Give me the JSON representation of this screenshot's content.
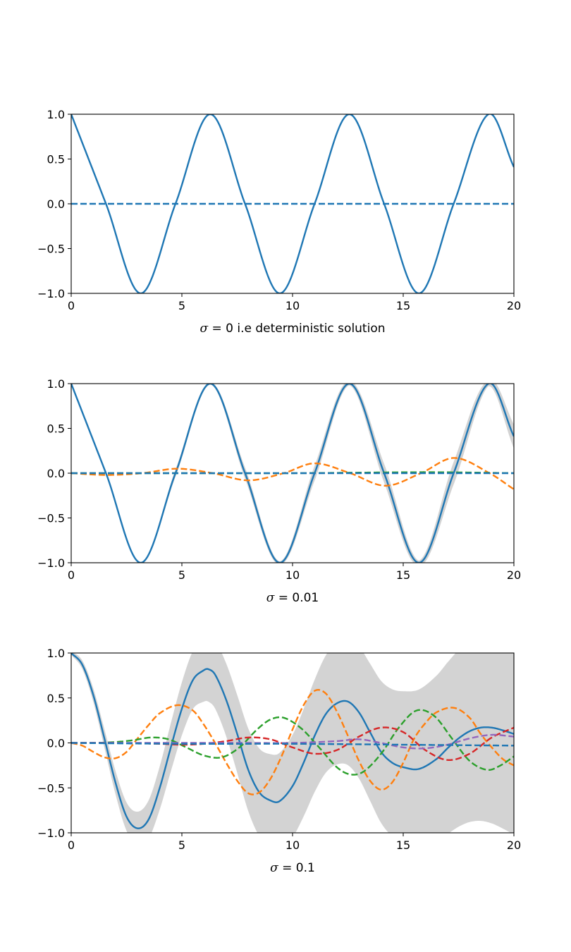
{
  "chart_data": [
    {
      "type": "line",
      "xlabel_symbol": "σ",
      "xlabel_text": " = 0 i.e deterministic solution",
      "xlim": [
        0,
        20
      ],
      "ylim": [
        -1.0,
        1.0
      ],
      "xticks": [
        "0",
        "5",
        "10",
        "15",
        "20"
      ],
      "yticks": [
        "1.0",
        "0.5",
        "0.0",
        "−0.5",
        "−1.0"
      ],
      "grid": false,
      "band": null,
      "series": [
        {
          "style": "solid",
          "color": "#1f77b4",
          "x": [
            0,
            1.571,
            3.142,
            4.712,
            6.283,
            7.854,
            9.425,
            10.996,
            12.566,
            14.137,
            15.708,
            17.279,
            18.85,
            20
          ],
          "y": [
            1.0,
            0.0,
            -1.0,
            0.0,
            1.0,
            0.0,
            -1.0,
            0.0,
            1.0,
            0.0,
            -1.0,
            0.0,
            1.0,
            0.41
          ]
        },
        {
          "style": "dashed",
          "color": "#1f77b4",
          "x": [
            0,
            20
          ],
          "y": [
            0.0,
            0.0
          ]
        }
      ]
    },
    {
      "type": "line",
      "xlabel_symbol": "σ",
      "xlabel_text": " = 0.01",
      "xlim": [
        0,
        20
      ],
      "ylim": [
        -1.0,
        1.0
      ],
      "xticks": [
        "0",
        "5",
        "10",
        "15",
        "20"
      ],
      "yticks": [
        "1.0",
        "0.5",
        "0.0",
        "−0.5",
        "−1.0"
      ],
      "grid": false,
      "band": {
        "color": "#d3d3d3",
        "note": "± spread around mean, widening with x"
      },
      "series": [
        {
          "style": "solid",
          "color": "#1f77b4",
          "x": [
            0,
            1.571,
            3.142,
            4.712,
            6.283,
            7.854,
            9.425,
            10.996,
            12.566,
            14.137,
            15.708,
            17.279,
            18.85,
            20
          ],
          "y": [
            1.0,
            0.0,
            -1.0,
            0.0,
            1.0,
            0.0,
            -1.0,
            0.0,
            1.0,
            0.0,
            -1.0,
            0.0,
            1.0,
            0.41
          ]
        },
        {
          "style": "dashed",
          "color": "#ff7f0e",
          "x": [
            0,
            1.6,
            3.2,
            4.8,
            6.4,
            8.0,
            9.6,
            11.0,
            12.6,
            14.2,
            15.8,
            17.3,
            18.9,
            20
          ],
          "y": [
            0.0,
            -0.02,
            0.0,
            0.05,
            0.0,
            -0.08,
            0.0,
            0.11,
            0.0,
            -0.14,
            0.0,
            0.17,
            0.0,
            -0.18
          ]
        },
        {
          "style": "dashed",
          "color": "#2ca02c",
          "x": [
            0,
            5,
            10,
            15,
            17,
            20
          ],
          "y": [
            0.0,
            0.0,
            0.0,
            0.01,
            0.01,
            0.0
          ]
        },
        {
          "style": "dashed",
          "color": "#1f77b4",
          "x": [
            0,
            20
          ],
          "y": [
            0.0,
            0.0
          ]
        }
      ]
    },
    {
      "type": "line",
      "xlabel_symbol": "σ",
      "xlabel_text": " = 0.1",
      "xlim": [
        0,
        20
      ],
      "ylim": [
        -1.0,
        1.0
      ],
      "xticks": [
        "0",
        "5",
        "10",
        "15",
        "20"
      ],
      "yticks": [
        "1.0",
        "0.5",
        "0.0",
        "−0.5",
        "−1.0"
      ],
      "grid": false,
      "band": {
        "color": "#d3d3d3",
        "note": "wide uncertainty band"
      },
      "series": [
        {
          "style": "solid",
          "color": "#1f77b4",
          "x": [
            0,
            0.5,
            1.0,
            1.5,
            2.0,
            2.5,
            3.0,
            3.5,
            4.0,
            4.5,
            5.0,
            5.5,
            6.0,
            6.2,
            6.5,
            7.0,
            7.5,
            8.0,
            8.5,
            9.0,
            9.4,
            10.0,
            10.5,
            11.0,
            11.5,
            12.0,
            12.5,
            13.0,
            13.5,
            14.0,
            14.5,
            15.0,
            15.7,
            16.5,
            17.0,
            17.5,
            18.0,
            18.5,
            19.0,
            19.5,
            20.0
          ],
          "y": [
            1.0,
            0.87,
            0.53,
            0.05,
            -0.44,
            -0.82,
            -0.95,
            -0.85,
            -0.5,
            -0.05,
            0.38,
            0.7,
            0.81,
            0.82,
            0.76,
            0.48,
            0.1,
            -0.3,
            -0.55,
            -0.64,
            -0.65,
            -0.48,
            -0.22,
            0.08,
            0.32,
            0.44,
            0.46,
            0.34,
            0.12,
            -0.1,
            -0.22,
            -0.27,
            -0.29,
            -0.18,
            -0.06,
            0.05,
            0.13,
            0.17,
            0.17,
            0.14,
            0.1
          ]
        },
        {
          "style": "dashed",
          "color": "#ff7f0e",
          "x": [
            0,
            0.5,
            1.0,
            1.5,
            2.0,
            2.5,
            3.0,
            3.5,
            4.0,
            4.8,
            5.5,
            6.0,
            6.5,
            7.0,
            7.5,
            8.0,
            8.5,
            9.0,
            9.5,
            10.0,
            10.5,
            11.0,
            11.5,
            12.0,
            12.5,
            13.0,
            13.5,
            14.0,
            14.5,
            15.0,
            15.5,
            16.0,
            16.5,
            17.3,
            18.0,
            18.5,
            19.0,
            19.5,
            20.0
          ],
          "y": [
            0.0,
            -0.03,
            -0.1,
            -0.16,
            -0.17,
            -0.1,
            0.05,
            0.2,
            0.33,
            0.42,
            0.36,
            0.2,
            0.0,
            -0.22,
            -0.42,
            -0.56,
            -0.55,
            -0.4,
            -0.15,
            0.15,
            0.42,
            0.58,
            0.55,
            0.35,
            0.08,
            -0.2,
            -0.42,
            -0.52,
            -0.44,
            -0.22,
            0.05,
            0.22,
            0.34,
            0.39,
            0.28,
            0.1,
            -0.05,
            -0.18,
            -0.25
          ]
        },
        {
          "style": "dashed",
          "color": "#2ca02c",
          "x": [
            0,
            1.0,
            2.0,
            2.8,
            3.6,
            4.4,
            5.2,
            6.0,
            6.8,
            7.6,
            8.4,
            9.0,
            9.6,
            10.4,
            11.2,
            12.0,
            12.6,
            13.2,
            14.0,
            14.8,
            15.6,
            16.4,
            17.2,
            18.0,
            18.8,
            19.4,
            20.0
          ],
          "y": [
            0.0,
            0.0,
            0.01,
            0.03,
            0.06,
            0.04,
            -0.05,
            -0.14,
            -0.16,
            -0.05,
            0.15,
            0.26,
            0.28,
            0.16,
            -0.05,
            -0.27,
            -0.35,
            -0.32,
            -0.12,
            0.17,
            0.36,
            0.3,
            0.05,
            -0.2,
            -0.3,
            -0.25,
            -0.15
          ]
        },
        {
          "style": "dashed",
          "color": "#d62728",
          "x": [
            0,
            2.0,
            4.0,
            5.0,
            6.0,
            7.0,
            8.0,
            9.0,
            10.0,
            11.0,
            12.0,
            13.0,
            14.0,
            15.0,
            16.0,
            17.0,
            18.0,
            19.0,
            20.0
          ],
          "y": [
            0.0,
            0.0,
            -0.01,
            -0.02,
            -0.01,
            0.02,
            0.06,
            0.04,
            -0.05,
            -0.12,
            -0.08,
            0.07,
            0.17,
            0.12,
            -0.08,
            -0.19,
            -0.12,
            0.06,
            0.17
          ]
        },
        {
          "style": "dashed",
          "color": "#9467bd",
          "x": [
            0,
            4.0,
            8.0,
            10.0,
            12.0,
            13.0,
            14.0,
            15.0,
            16.0,
            17.0,
            18.0,
            19.0,
            20.0
          ],
          "y": [
            0.0,
            0.0,
            0.0,
            0.0,
            0.02,
            0.04,
            0.0,
            -0.05,
            -0.06,
            -0.02,
            0.05,
            0.09,
            0.07
          ]
        },
        {
          "style": "dashed",
          "color": "#1f77b4",
          "x": [
            0,
            5,
            10,
            15,
            20
          ],
          "y": [
            0.0,
            -0.01,
            -0.01,
            -0.02,
            -0.03
          ]
        }
      ]
    }
  ]
}
